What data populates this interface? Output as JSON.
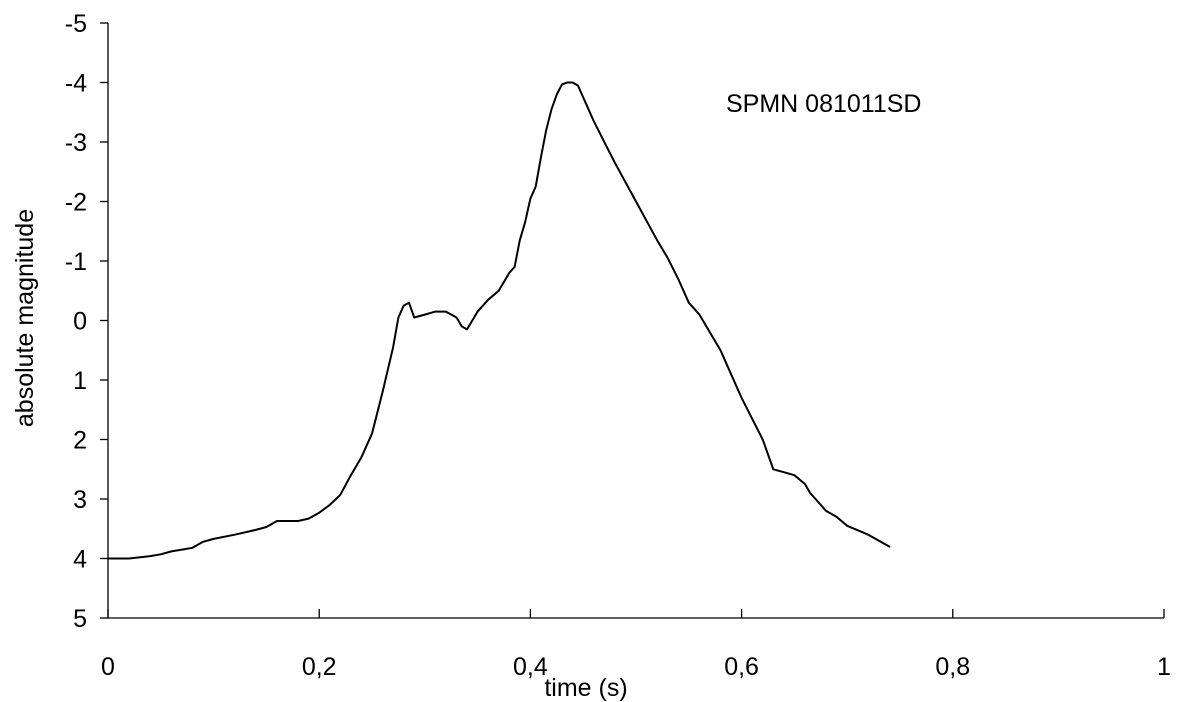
{
  "chart_data": {
    "type": "line",
    "title": "",
    "annotation": "SPMN 081011SD",
    "xlabel": "time (s)",
    "ylabel": "absolute magnitude",
    "xlim": [
      0,
      1
    ],
    "ylim": [
      5,
      -5
    ],
    "y_inverted": true,
    "grid": false,
    "x_ticks": [
      0,
      0.2,
      0.4,
      0.6,
      0.8,
      1
    ],
    "x_tick_labels": [
      "0",
      "0,2",
      "0,4",
      "0,6",
      "0,8",
      "1"
    ],
    "y_ticks": [
      -5,
      -4,
      -3,
      -2,
      -1,
      0,
      1,
      2,
      3,
      4,
      5
    ],
    "y_tick_labels": [
      "-5",
      "-4",
      "-3",
      "-2",
      "-1",
      "0",
      "1",
      "2",
      "3",
      "4",
      "5"
    ],
    "line_color": "#000000",
    "series": [
      {
        "x": [
          0,
          0.02,
          0.04,
          0.05,
          0.06,
          0.07,
          0.08,
          0.09,
          0.1,
          0.12,
          0.14,
          0.15,
          0.16,
          0.17,
          0.18,
          0.19,
          0.2,
          0.21,
          0.22,
          0.23,
          0.24,
          0.25,
          0.26,
          0.27,
          0.275,
          0.28,
          0.285,
          0.29,
          0.3,
          0.31,
          0.32,
          0.33,
          0.335,
          0.34,
          0.345,
          0.35,
          0.36,
          0.37,
          0.38,
          0.385,
          0.39,
          0.395,
          0.4,
          0.405,
          0.41,
          0.415,
          0.42,
          0.425,
          0.43,
          0.435,
          0.44,
          0.445,
          0.45,
          0.46,
          0.47,
          0.48,
          0.5,
          0.52,
          0.53,
          0.54,
          0.55,
          0.56,
          0.58,
          0.6,
          0.62,
          0.63,
          0.64,
          0.65,
          0.66,
          0.665,
          0.67,
          0.68,
          0.69,
          0.7,
          0.72,
          0.74
        ],
        "y": [
          4.0,
          4.0,
          3.96,
          3.93,
          3.88,
          3.85,
          3.82,
          3.72,
          3.67,
          3.6,
          3.52,
          3.47,
          3.37,
          3.37,
          3.37,
          3.33,
          3.23,
          3.1,
          2.93,
          2.6,
          2.3,
          1.9,
          1.2,
          0.45,
          -0.05,
          -0.25,
          -0.3,
          -0.05,
          -0.1,
          -0.15,
          -0.15,
          -0.05,
          0.1,
          0.15,
          0.0,
          -0.15,
          -0.35,
          -0.5,
          -0.8,
          -0.9,
          -1.35,
          -1.65,
          -2.05,
          -2.25,
          -2.75,
          -3.2,
          -3.55,
          -3.8,
          -3.97,
          -4.0,
          -4.0,
          -3.95,
          -3.75,
          -3.35,
          -3.0,
          -2.65,
          -2.0,
          -1.35,
          -1.05,
          -0.7,
          -0.3,
          -0.1,
          0.5,
          1.3,
          2.0,
          2.5,
          2.55,
          2.6,
          2.75,
          2.9,
          3.0,
          3.2,
          3.3,
          3.45,
          3.6,
          3.8
        ]
      }
    ]
  }
}
